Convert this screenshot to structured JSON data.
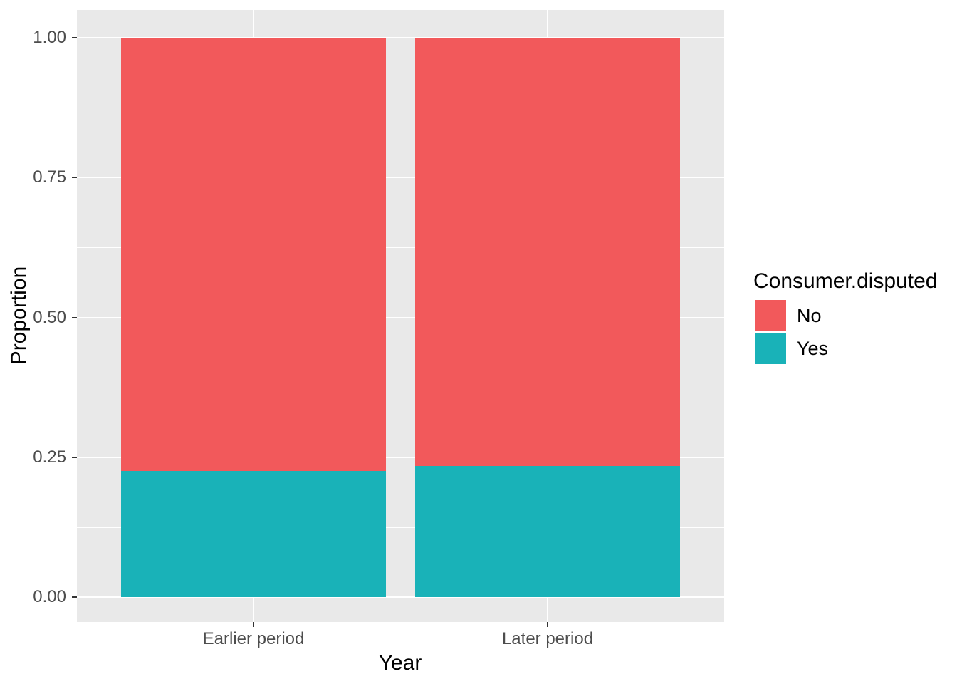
{
  "chart_data": {
    "type": "bar",
    "stacked": true,
    "orientation": "vertical",
    "title": "",
    "xlabel": "Year",
    "ylabel": "Proportion",
    "categories": [
      "Earlier period",
      "Later period"
    ],
    "series": [
      {
        "name": "No",
        "color": "#F2595B",
        "values": [
          0.774,
          0.765
        ]
      },
      {
        "name": "Yes",
        "color": "#19B2B8",
        "values": [
          0.226,
          0.235
        ]
      }
    ],
    "ylim": [
      0,
      1
    ],
    "yticks": [
      {
        "value": 0.0,
        "label": "0.00"
      },
      {
        "value": 0.25,
        "label": "0.25"
      },
      {
        "value": 0.5,
        "label": "0.50"
      },
      {
        "value": 0.75,
        "label": "0.75"
      },
      {
        "value": 1.0,
        "label": "1.00"
      }
    ],
    "grid": {
      "major_color": "#FFFFFF",
      "minor_color": "#FFFFFF",
      "minor_between_majors": true
    },
    "panel_background": "#E9E9E9",
    "legend": {
      "title": "Consumer.disputed",
      "position": "right",
      "entries": [
        {
          "label": "No",
          "color": "#F2595B"
        },
        {
          "label": "Yes",
          "color": "#19B2B8"
        }
      ]
    }
  }
}
